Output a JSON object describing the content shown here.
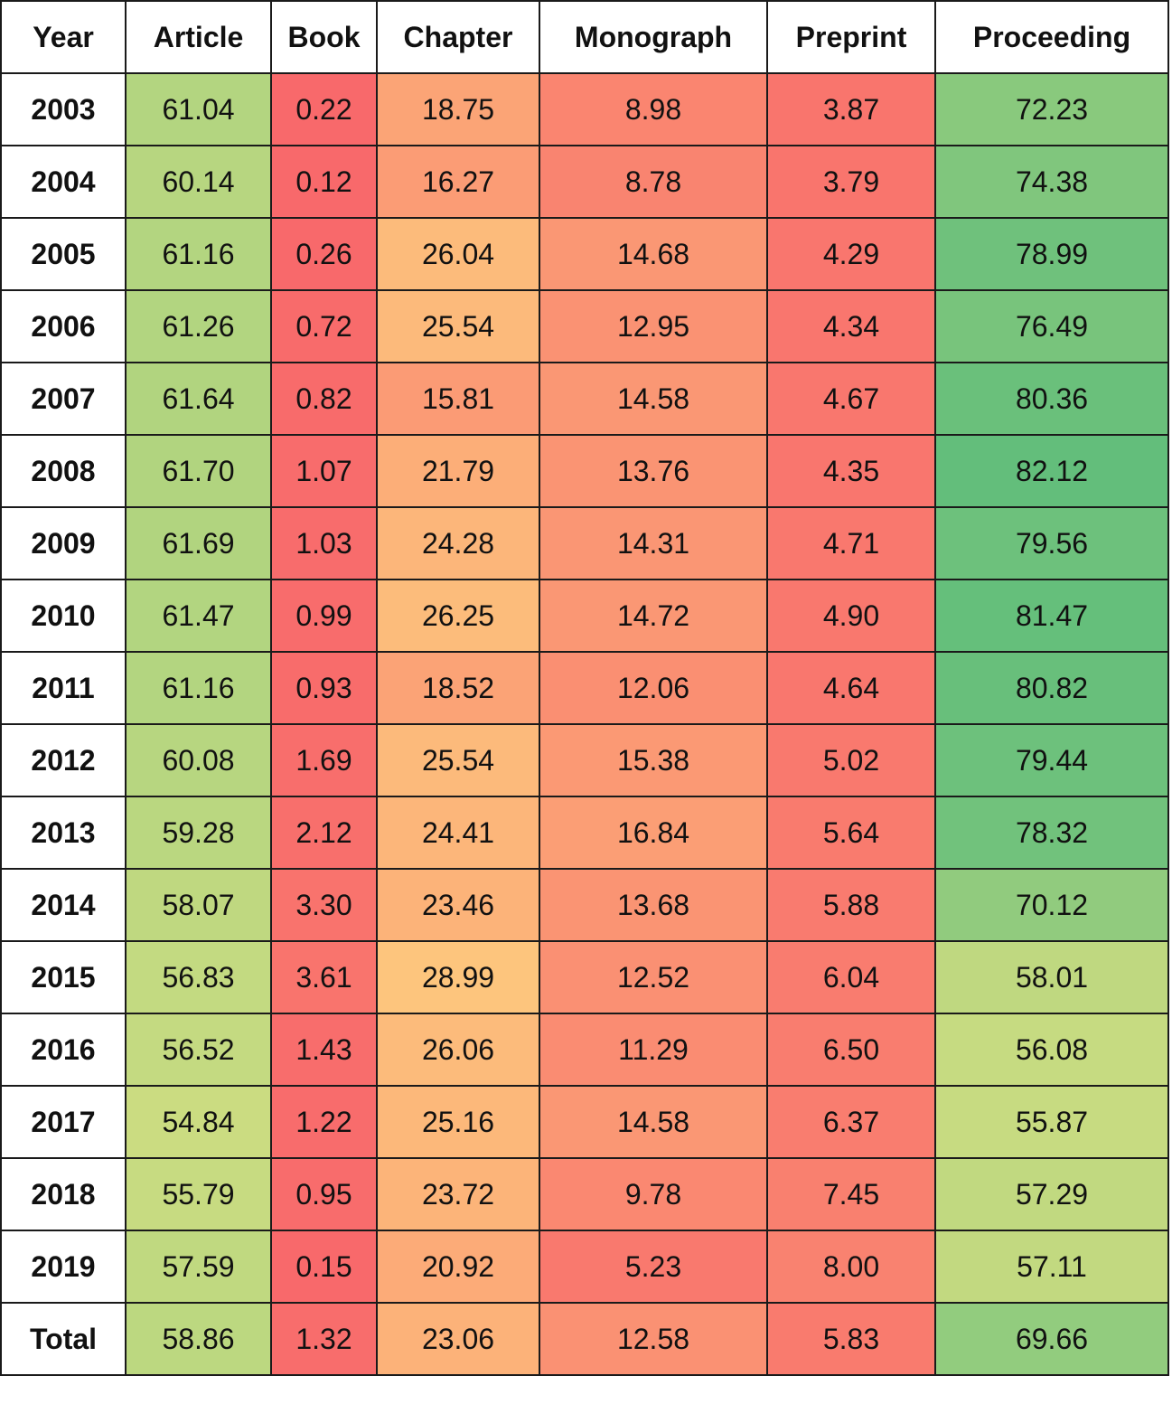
{
  "chart_data": {
    "type": "table",
    "columns": [
      "Year",
      "Article",
      "Book",
      "Chapter",
      "Monograph",
      "Preprint",
      "Proceeding"
    ],
    "rows": [
      {
        "year": "2003",
        "values": [
          "61.04",
          "0.22",
          "18.75",
          "8.98",
          "3.87",
          "72.23"
        ]
      },
      {
        "year": "2004",
        "values": [
          "60.14",
          "0.12",
          "16.27",
          "8.78",
          "3.79",
          "74.38"
        ]
      },
      {
        "year": "2005",
        "values": [
          "61.16",
          "0.26",
          "26.04",
          "14.68",
          "4.29",
          "78.99"
        ]
      },
      {
        "year": "2006",
        "values": [
          "61.26",
          "0.72",
          "25.54",
          "12.95",
          "4.34",
          "76.49"
        ]
      },
      {
        "year": "2007",
        "values": [
          "61.64",
          "0.82",
          "15.81",
          "14.58",
          "4.67",
          "80.36"
        ]
      },
      {
        "year": "2008",
        "values": [
          "61.70",
          "1.07",
          "21.79",
          "13.76",
          "4.35",
          "82.12"
        ]
      },
      {
        "year": "2009",
        "values": [
          "61.69",
          "1.03",
          "24.28",
          "14.31",
          "4.71",
          "79.56"
        ]
      },
      {
        "year": "2010",
        "values": [
          "61.47",
          "0.99",
          "26.25",
          "14.72",
          "4.90",
          "81.47"
        ]
      },
      {
        "year": "2011",
        "values": [
          "61.16",
          "0.93",
          "18.52",
          "12.06",
          "4.64",
          "80.82"
        ]
      },
      {
        "year": "2012",
        "values": [
          "60.08",
          "1.69",
          "25.54",
          "15.38",
          "5.02",
          "79.44"
        ]
      },
      {
        "year": "2013",
        "values": [
          "59.28",
          "2.12",
          "24.41",
          "16.84",
          "5.64",
          "78.32"
        ]
      },
      {
        "year": "2014",
        "values": [
          "58.07",
          "3.30",
          "23.46",
          "13.68",
          "5.88",
          "70.12"
        ]
      },
      {
        "year": "2015",
        "values": [
          "56.83",
          "3.61",
          "28.99",
          "12.52",
          "6.04",
          "58.01"
        ]
      },
      {
        "year": "2016",
        "values": [
          "56.52",
          "1.43",
          "26.06",
          "11.29",
          "6.50",
          "56.08"
        ]
      },
      {
        "year": "2017",
        "values": [
          "54.84",
          "1.22",
          "25.16",
          "14.58",
          "6.37",
          "55.87"
        ]
      },
      {
        "year": "2018",
        "values": [
          "55.79",
          "0.95",
          "23.72",
          "9.78",
          "7.45",
          "57.29"
        ]
      },
      {
        "year": "2019",
        "values": [
          "57.59",
          "0.15",
          "20.92",
          "5.23",
          "8.00",
          "57.11"
        ]
      },
      {
        "year": "Total",
        "values": [
          "58.86",
          "1.32",
          "23.06",
          "12.58",
          "5.83",
          "69.66"
        ]
      }
    ],
    "color_scale": {
      "type": "red-yellow-green",
      "low": "#f8696b",
      "mid": "#ffeb84",
      "high": "#63be7b"
    }
  }
}
